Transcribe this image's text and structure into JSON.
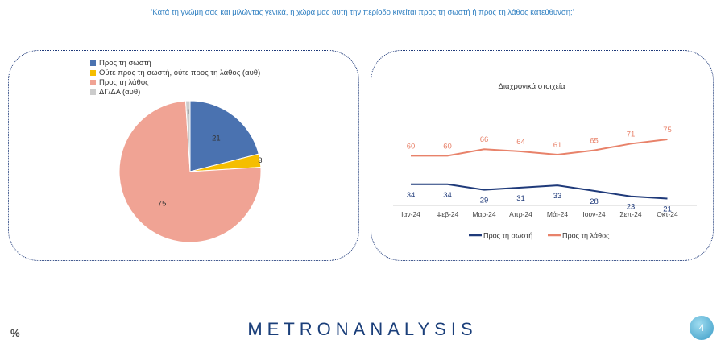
{
  "question": "'Κατά τη γνώμη σας και μιλώντας γενικά, η χώρα μας αυτή την περίοδο κινείται προς τη σωστή ή προς τη λάθος κατεύθυνση;'",
  "footer": {
    "percent_symbol": "%",
    "brand_left": "METRON",
    "brand_right": "ANALYSIS",
    "page_number": "4"
  },
  "chart_data": [
    {
      "type": "pie",
      "labels": [
        "Προς τη σωστή",
        "Ούτε προς τη σωστή, ούτε προς τη λάθος (αυθ)",
        "Προς τη λάθος",
        "ΔΓ/ΔΑ (αυθ)"
      ],
      "values": [
        21,
        3,
        75,
        1
      ],
      "colors": [
        "#4a72b0",
        "#f5be00",
        "#f0a394",
        "#cccccc"
      ],
      "legend_position": "top-left"
    },
    {
      "type": "line",
      "title": "Διαχρονικά στοιχεία",
      "categories": [
        "Ιαν-24",
        "Φεβ-24",
        "Μαρ-24",
        "Απρ-24",
        "Μάι-24",
        "Ιουν-24",
        "Σεπ-24",
        "Οκτ-24"
      ],
      "series": [
        {
          "name": "Προς τη σωστή",
          "values": [
            34,
            34,
            29,
            31,
            33,
            28,
            23,
            21
          ],
          "color": "#1f3a7a"
        },
        {
          "name": "Προς τη λάθος",
          "values": [
            60,
            60,
            66,
            64,
            61,
            65,
            71,
            75
          ],
          "color": "#e8826a"
        }
      ],
      "legend_position": "bottom",
      "grid": false
    }
  ]
}
